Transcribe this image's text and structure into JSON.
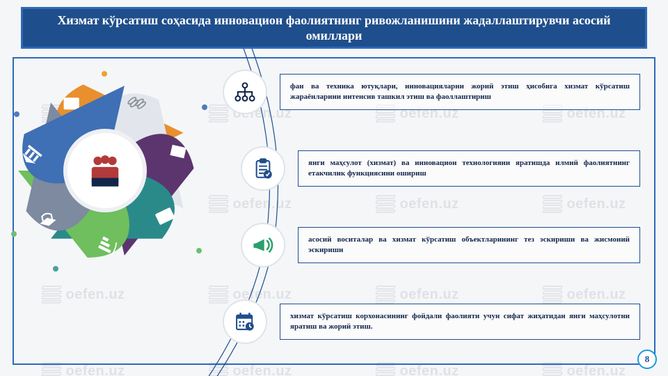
{
  "header": {
    "title": "Хизмат кўрсатиш соҳасида инновацион фаолиятнинг ривожланишини жадаллаштирувчи асосий омиллари"
  },
  "watermark": {
    "text": "oefen.uz"
  },
  "page_number": "8",
  "colors": {
    "header_bg": "#1f4e8c",
    "header_border": "#2d6ab8",
    "frame_border": "#2d6ab8",
    "box_border": "#1f4e8c",
    "text": "#12264a",
    "icon1": "#12264a",
    "icon2": "#1f4e8c",
    "icon3": "#2aa06b",
    "icon4": "#1f4e8c"
  },
  "wheel": {
    "segments": [
      {
        "color": "#e98f2e",
        "icon": "book"
      },
      {
        "color": "#e2e6ec",
        "icon": "coins"
      },
      {
        "color": "#5c356f",
        "icon": "blank"
      },
      {
        "color": "#2a8a8a",
        "icon": "doc"
      },
      {
        "color": "#6fbf5e",
        "icon": "bars"
      },
      {
        "color": "#7d8aa0",
        "icon": "cap"
      },
      {
        "color": "#3f6fb5",
        "icon": "bank"
      }
    ],
    "hub_icon": "people",
    "hub_color": "#b23a3a"
  },
  "items": [
    {
      "icon": "network",
      "text": "фан ва техника ютуқлари, инновацияларни жорий этиш ҳисобига хизмат кўрсатиш жараёнларини интенсив ташкил этиш ва фаоллаштириш"
    },
    {
      "icon": "checklist",
      "text": "янги маҳсулот (хизмат) ва инновацион технологияни яратишда илмий фаолиятнинг етакчилик функциясини ошириш"
    },
    {
      "icon": "megaphone",
      "text": "асосий воситалар ва хизмат кўрсатиш объектларининг тез эскириши ва жисмоний эскириши"
    },
    {
      "icon": "calendar",
      "text": "хизмат кўрсатиш корхонасининг фойдали фаолияти учун сифат жиҳатидан янги маҳсулотни яратиш ва жорий этиш."
    }
  ]
}
